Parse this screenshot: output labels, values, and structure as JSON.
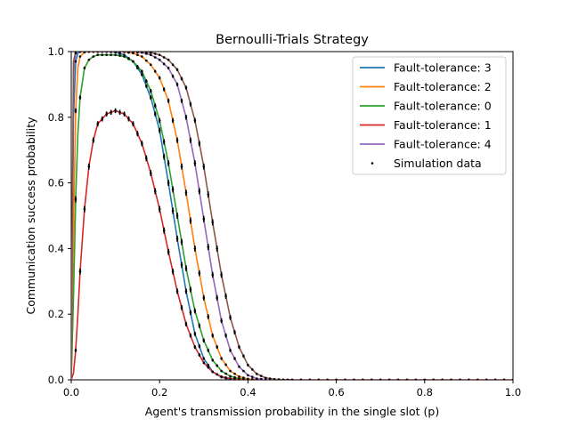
{
  "chart_data": {
    "type": "line",
    "title": "Bernoulli-Trials Strategy",
    "xlabel": "Agent's transmission probability in the single slot (p)",
    "ylabel": "Communication success probability",
    "xlim": [
      0.0,
      1.0
    ],
    "ylim": [
      0.0,
      1.0
    ],
    "x_ticks": [
      "0.0",
      "0.2",
      "0.4",
      "0.6",
      "0.8",
      "1.0"
    ],
    "y_ticks": [
      "0.0",
      "0.2",
      "0.4",
      "0.6",
      "0.8",
      "1.0"
    ],
    "grid": false,
    "legend_position": "top-right",
    "x": [
      0.0,
      0.005,
      0.01,
      0.015,
      0.02,
      0.03,
      0.04,
      0.05,
      0.06,
      0.08,
      0.1,
      0.12,
      0.14,
      0.16,
      0.18,
      0.2,
      0.22,
      0.24,
      0.26,
      0.28,
      0.3,
      0.32,
      0.34,
      0.36,
      0.38,
      0.4,
      0.42,
      0.44,
      0.46,
      0.48,
      0.5,
      0.55,
      0.6,
      0.7,
      0.8,
      0.9,
      1.0
    ],
    "series": [
      {
        "name": "Fault-tolerance: 3",
        "color": "#1f77b4",
        "values": [
          0.0,
          0.8,
          0.97,
          0.995,
          1.0,
          1.0,
          1.0,
          1.0,
          1.0,
          1.0,
          0.998,
          0.99,
          0.97,
          0.93,
          0.86,
          0.76,
          0.6,
          0.43,
          0.27,
          0.14,
          0.065,
          0.025,
          0.008,
          0.002,
          0.0005,
          0.0,
          0.0,
          0.0,
          0.0,
          0.0,
          0.0,
          0.0,
          0.0,
          0.0,
          0.0,
          0.0,
          0.0
        ]
      },
      {
        "name": "Fault-tolerance: 2",
        "color": "#ff7f0e",
        "values": [
          0.0,
          0.45,
          0.82,
          0.95,
          0.985,
          0.998,
          1.0,
          1.0,
          1.0,
          1.0,
          1.0,
          0.999,
          0.995,
          0.985,
          0.96,
          0.92,
          0.85,
          0.73,
          0.57,
          0.4,
          0.25,
          0.135,
          0.065,
          0.027,
          0.01,
          0.003,
          0.001,
          0.0,
          0.0,
          0.0,
          0.0,
          0.0,
          0.0,
          0.0,
          0.0,
          0.0,
          0.0
        ]
      },
      {
        "name": "Fault-tolerance: 0",
        "color": "#2ca02c",
        "values": [
          0.0,
          0.25,
          0.55,
          0.75,
          0.86,
          0.95,
          0.975,
          0.985,
          0.99,
          0.99,
          0.99,
          0.985,
          0.97,
          0.94,
          0.88,
          0.79,
          0.66,
          0.5,
          0.34,
          0.21,
          0.12,
          0.06,
          0.027,
          0.011,
          0.004,
          0.001,
          0.0,
          0.0,
          0.0,
          0.0,
          0.0,
          0.0,
          0.0,
          0.0,
          0.0,
          0.0,
          0.0
        ]
      },
      {
        "name": "Fault-tolerance: 1",
        "color": "#d62728",
        "values": [
          0.0,
          0.02,
          0.09,
          0.2,
          0.33,
          0.52,
          0.65,
          0.73,
          0.78,
          0.81,
          0.82,
          0.81,
          0.78,
          0.72,
          0.63,
          0.52,
          0.39,
          0.27,
          0.17,
          0.1,
          0.052,
          0.024,
          0.01,
          0.004,
          0.001,
          0.0,
          0.0,
          0.0,
          0.0,
          0.0,
          0.0,
          0.0,
          0.0,
          0.0,
          0.0,
          0.0,
          0.0
        ]
      },
      {
        "name": "Fault-tolerance: 4",
        "color": "#9467bd",
        "values": [
          0.0,
          0.93,
          0.995,
          1.0,
          1.0,
          1.0,
          1.0,
          1.0,
          1.0,
          1.0,
          1.0,
          1.0,
          0.999,
          0.997,
          0.99,
          0.975,
          0.95,
          0.9,
          0.8,
          0.66,
          0.49,
          0.32,
          0.18,
          0.09,
          0.04,
          0.014,
          0.004,
          0.001,
          0.0,
          0.0,
          0.0,
          0.0,
          0.0,
          0.0,
          0.0,
          0.0,
          0.0
        ]
      },
      {
        "color": "#8c564b",
        "values": [
          0.0,
          0.97,
          0.999,
          1.0,
          1.0,
          1.0,
          1.0,
          1.0,
          1.0,
          1.0,
          1.0,
          1.0,
          1.0,
          0.999,
          0.997,
          0.99,
          0.975,
          0.945,
          0.89,
          0.79,
          0.65,
          0.48,
          0.32,
          0.19,
          0.1,
          0.045,
          0.018,
          0.006,
          0.002,
          0.0005,
          0.0,
          0.0,
          0.0,
          0.0,
          0.0,
          0.0,
          0.0
        ]
      }
    ],
    "legend": [
      {
        "label": "Fault-tolerance: 3",
        "color": "#1f77b4",
        "marker": "line"
      },
      {
        "label": "Fault-tolerance: 2",
        "color": "#ff7f0e",
        "marker": "line"
      },
      {
        "label": "Fault-tolerance: 0",
        "color": "#2ca02c",
        "marker": "line"
      },
      {
        "label": "Fault-tolerance: 1",
        "color": "#d62728",
        "marker": "line"
      },
      {
        "label": "Fault-tolerance: 4",
        "color": "#9467bd",
        "marker": "line"
      },
      {
        "label": "Simulation data",
        "color": "#000000",
        "marker": "dot"
      }
    ],
    "simulation_data": {
      "color": "#000000",
      "error_bars": true,
      "x": [
        0.01,
        0.02,
        0.03,
        0.04,
        0.05,
        0.06,
        0.07,
        0.08,
        0.09,
        0.1,
        0.11,
        0.12,
        0.13,
        0.14,
        0.15,
        0.16,
        0.17,
        0.18,
        0.19,
        0.2,
        0.21,
        0.22,
        0.23,
        0.24,
        0.25,
        0.26,
        0.27,
        0.28,
        0.29,
        0.3,
        0.31,
        0.32,
        0.33,
        0.34,
        0.35,
        0.36,
        0.37,
        0.38,
        0.39,
        0.4,
        0.41,
        0.42,
        0.43,
        0.44,
        0.45,
        0.46,
        0.47,
        0.48,
        0.49,
        0.5,
        0.52,
        0.54,
        0.56,
        0.58,
        0.6,
        0.62,
        0.64,
        0.66,
        0.68,
        0.7,
        0.72,
        0.74,
        0.76,
        0.78,
        0.8,
        0.82,
        0.84,
        0.86,
        0.88,
        0.9,
        0.92,
        0.94,
        0.96,
        0.98,
        1.0
      ]
    }
  }
}
